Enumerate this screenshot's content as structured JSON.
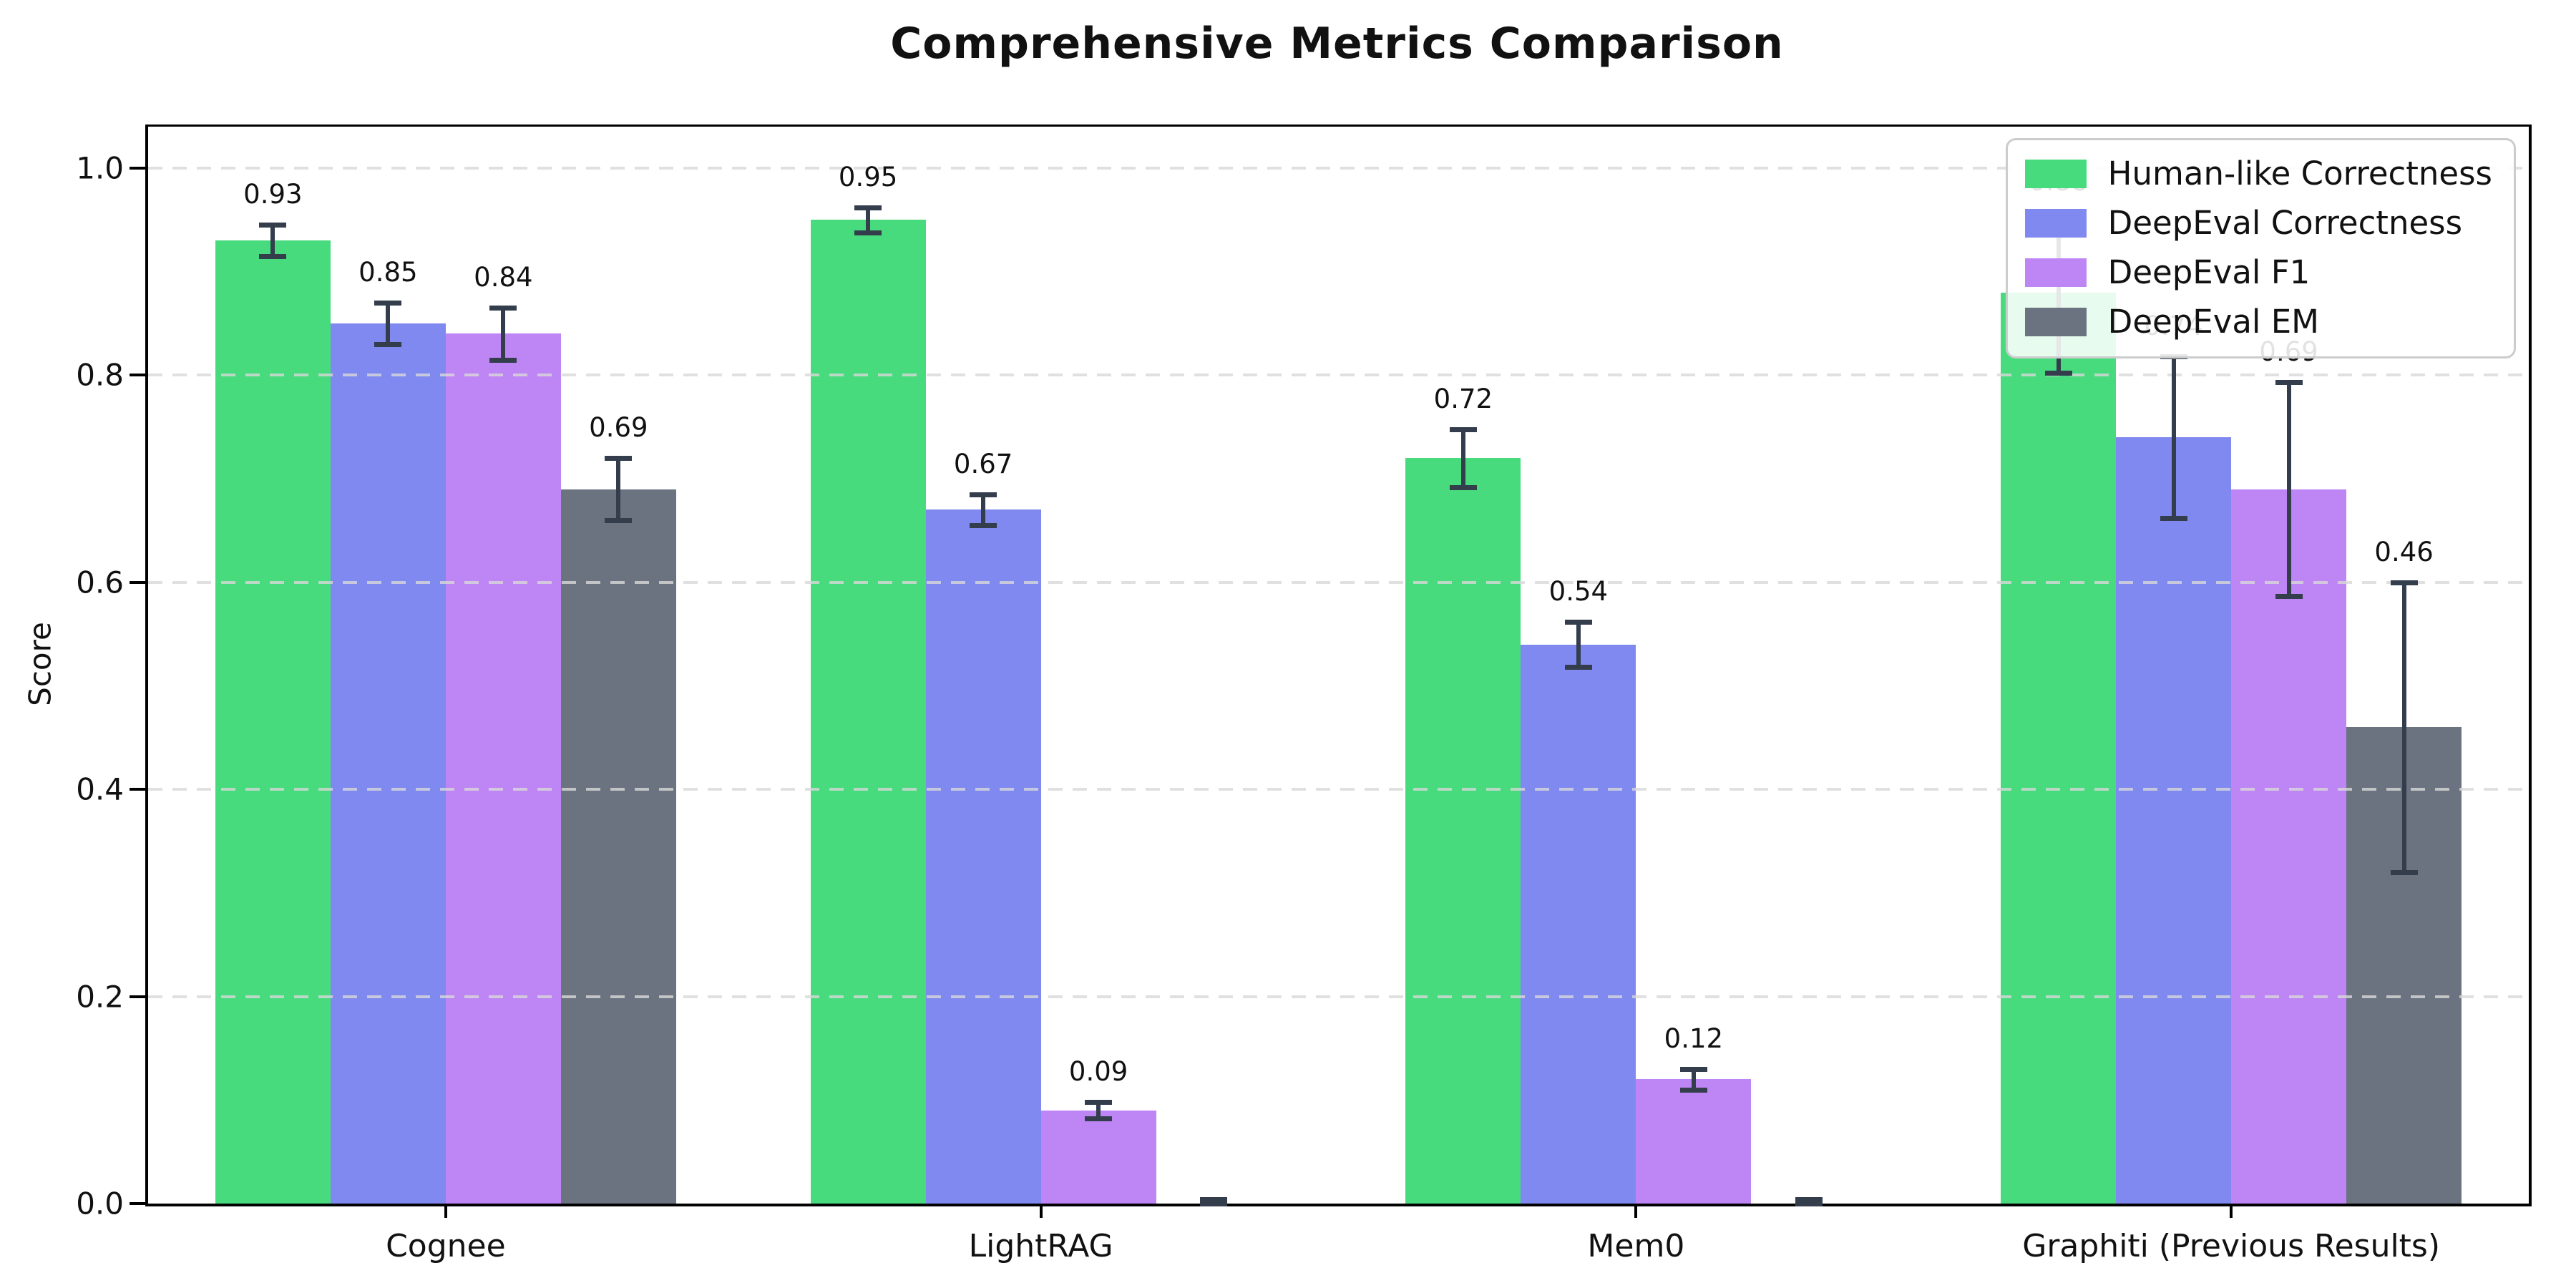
{
  "chart_data": {
    "type": "bar",
    "title": "Comprehensive Metrics Comparison",
    "ylabel": "Score",
    "xlabel": "",
    "categories": [
      "Cognee",
      "LightRAG",
      "Mem0",
      "Graphiti (Previous Results)"
    ],
    "series": [
      {
        "name": "Human-like Correctness",
        "color": "#47db7e",
        "values": [
          0.93,
          0.95,
          0.72,
          0.88
        ],
        "errors": [
          0.015,
          0.012,
          0.028,
          0.078
        ],
        "labels": [
          "0.93",
          "0.95",
          "0.72",
          "0.88"
        ]
      },
      {
        "name": "DeepEval Correctness",
        "color": "#8089f0",
        "values": [
          0.85,
          0.67,
          0.54,
          0.74
        ],
        "errors": [
          0.02,
          0.015,
          0.022,
          0.078
        ],
        "labels": [
          "0.85",
          "0.67",
          "0.54",
          "0.74"
        ]
      },
      {
        "name": "DeepEval F1",
        "color": "#be85f5",
        "values": [
          0.84,
          0.09,
          0.12,
          0.69
        ],
        "errors": [
          0.025,
          0.008,
          0.01,
          0.103
        ],
        "labels": [
          "0.84",
          "0.09",
          "0.12",
          "0.69"
        ]
      },
      {
        "name": "DeepEval EM",
        "color": "#6b7280",
        "values": [
          0.69,
          0.0,
          0.0,
          0.46
        ],
        "errors": [
          0.03,
          0.004,
          0.004,
          0.14
        ],
        "labels": [
          "0.69",
          "",
          "",
          "0.46"
        ]
      }
    ],
    "ylim": [
      0,
      1.04
    ],
    "yticks": [
      0.0,
      0.2,
      0.4,
      0.6,
      0.8,
      1.0
    ],
    "ytick_labels": [
      "0.0",
      "0.2",
      "0.4",
      "0.6",
      "0.8",
      "1.0"
    ],
    "grid": "dashed-horizontal",
    "legend_position": "upper right",
    "error_bar_color": "#333d4c",
    "axis_color": "#000000",
    "grid_color": "#dddddd",
    "background": "#ffffff"
  }
}
